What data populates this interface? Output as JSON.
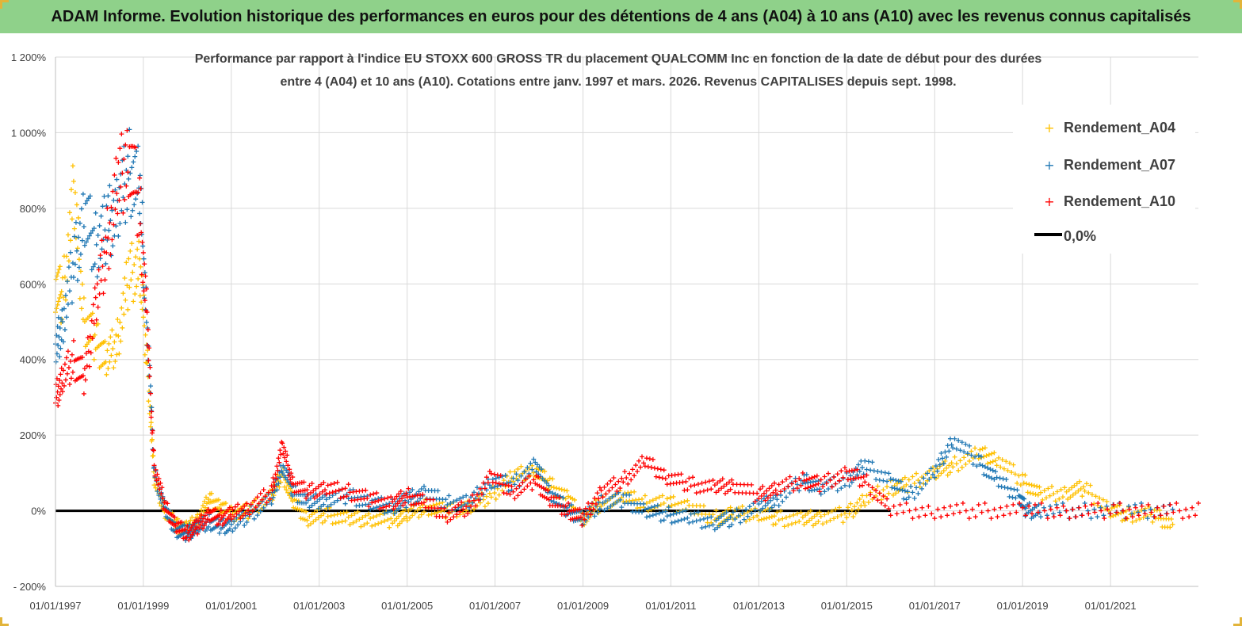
{
  "banner": {
    "title": "ADAM Informe. Evolution historique des performances en euros pour des détentions de 4 ans (A04) à 10 ans (A10) avec les revenus connus capitalisés"
  },
  "colors": {
    "banner_bg": "#8fd18a",
    "A04": "#ffc000",
    "A07": "#1f77b4",
    "A10": "#ff0000",
    "zero_line": "#000000",
    "grid": "#d9d9d9"
  },
  "chart_data": {
    "type": "scatter",
    "title_line1": "Performance par rapport à l'indice EU STOXX 600 GROSS TR  du placement QUALCOMM Inc en fonction de la date de début pour des durées",
    "title_line2": "entre 4 (A04) et 10 ans (A10). Cotations entre janv. 1997 et mars. 2026. Revenus CAPITALISES depuis sept. 1998.",
    "xlabel": "",
    "ylabel": "",
    "y_unit": "%",
    "ylim": [
      -200,
      1200
    ],
    "yticks": [
      -200,
      0,
      200,
      400,
      600,
      800,
      1000,
      1200
    ],
    "ytick_labels": [
      "- 200%",
      "0%",
      "200%",
      "400%",
      "600%",
      "800%",
      "1 000%",
      "1 200%"
    ],
    "xlim": [
      "1997-01-01",
      "2023-01-01"
    ],
    "xticks": [
      "1997-01-01",
      "1999-01-01",
      "2001-01-01",
      "2003-01-01",
      "2005-01-01",
      "2007-01-01",
      "2009-01-01",
      "2011-01-01",
      "2013-01-01",
      "2015-01-01",
      "2017-01-01",
      "2019-01-01",
      "2021-01-01"
    ],
    "xtick_labels": [
      "01/01/1997",
      "01/01/1999",
      "01/01/2001",
      "01/01/2003",
      "01/01/2005",
      "01/01/2007",
      "01/01/2009",
      "01/01/2011",
      "01/01/2013",
      "01/01/2015",
      "01/01/2017",
      "01/01/2019",
      "01/01/2021"
    ],
    "grid": true,
    "legend_position": "top-right",
    "legend": [
      "Rendement_A04",
      "Rendement_A07",
      "Rendement_A10",
      "0,0%"
    ],
    "series": [
      {
        "name": "Rendement_A04",
        "color": "#ffc000",
        "points": [
          [
            "1997-01-01",
            600
          ],
          [
            "1997-03-01",
            560
          ],
          [
            "1997-06-01",
            830
          ],
          [
            "1997-09-01",
            500
          ],
          [
            "1997-12-01",
            450
          ],
          [
            "1998-03-01",
            400
          ],
          [
            "1998-06-01",
            450
          ],
          [
            "1998-09-01",
            620
          ],
          [
            "1998-12-01",
            650
          ],
          [
            "1999-02-01",
            400
          ],
          [
            "1999-04-01",
            80
          ],
          [
            "1999-07-01",
            0
          ],
          [
            "1999-10-01",
            -40
          ],
          [
            "2000-01-01",
            -50
          ],
          [
            "2000-04-01",
            -20
          ],
          [
            "2000-07-01",
            30
          ],
          [
            "2000-10-01",
            10
          ],
          [
            "2001-01-01",
            -10
          ],
          [
            "2001-06-01",
            0
          ],
          [
            "2001-12-01",
            40
          ],
          [
            "2002-03-01",
            100
          ],
          [
            "2002-06-01",
            20
          ],
          [
            "2002-10-01",
            -20
          ],
          [
            "2003-03-01",
            -10
          ],
          [
            "2003-09-01",
            -25
          ],
          [
            "2004-03-01",
            -20
          ],
          [
            "2004-09-01",
            -25
          ],
          [
            "2005-01-01",
            -10
          ],
          [
            "2005-06-01",
            10
          ],
          [
            "2005-12-01",
            0
          ],
          [
            "2006-06-01",
            10
          ],
          [
            "2006-12-01",
            40
          ],
          [
            "2007-06-01",
            90
          ],
          [
            "2007-12-01",
            110
          ],
          [
            "2008-04-01",
            70
          ],
          [
            "2008-09-01",
            30
          ],
          [
            "2009-01-01",
            -20
          ],
          [
            "2009-06-01",
            20
          ],
          [
            "2009-12-01",
            40
          ],
          [
            "2010-06-01",
            20
          ],
          [
            "2010-12-01",
            20
          ],
          [
            "2011-06-01",
            10
          ],
          [
            "2012-01-01",
            -20
          ],
          [
            "2012-06-01",
            -10
          ],
          [
            "2013-01-01",
            -5
          ],
          [
            "2013-06-01",
            -20
          ],
          [
            "2014-01-01",
            -25
          ],
          [
            "2014-06-01",
            -15
          ],
          [
            "2015-01-01",
            -10
          ],
          [
            "2015-06-01",
            30
          ],
          [
            "2016-01-01",
            60
          ],
          [
            "2016-06-01",
            70
          ],
          [
            "2017-01-01",
            100
          ],
          [
            "2017-06-01",
            120
          ],
          [
            "2018-01-01",
            150
          ],
          [
            "2018-06-01",
            140
          ],
          [
            "2019-01-01",
            80
          ],
          [
            "2019-06-01",
            40
          ],
          [
            "2020-01-01",
            50
          ],
          [
            "2020-06-01",
            60
          ],
          [
            "2021-01-01",
            0
          ],
          [
            "2021-06-01",
            -10
          ],
          [
            "2022-01-01",
            -10
          ],
          [
            "2022-06-01",
            -40
          ]
        ]
      },
      {
        "name": "Rendement_A07",
        "color": "#1f77b4",
        "points": [
          [
            "1997-01-01",
            420
          ],
          [
            "1997-03-01",
            500
          ],
          [
            "1997-06-01",
            650
          ],
          [
            "1997-09-01",
            780
          ],
          [
            "1997-12-01",
            700
          ],
          [
            "1998-03-01",
            750
          ],
          [
            "1998-06-01",
            800
          ],
          [
            "1998-09-01",
            900
          ],
          [
            "1998-12-01",
            850
          ],
          [
            "1999-02-01",
            500
          ],
          [
            "1999-04-01",
            100
          ],
          [
            "1999-07-01",
            0
          ],
          [
            "1999-10-01",
            -50
          ],
          [
            "2000-01-01",
            -60
          ],
          [
            "2000-04-01",
            -40
          ],
          [
            "2000-07-01",
            -30
          ],
          [
            "2000-10-01",
            -40
          ],
          [
            "2001-01-01",
            -40
          ],
          [
            "2001-06-01",
            -10
          ],
          [
            "2001-12-01",
            30
          ],
          [
            "2002-03-01",
            120
          ],
          [
            "2002-06-01",
            50
          ],
          [
            "2002-10-01",
            20
          ],
          [
            "2003-03-01",
            30
          ],
          [
            "2003-09-01",
            40
          ],
          [
            "2004-03-01",
            20
          ],
          [
            "2004-09-01",
            10
          ],
          [
            "2005-01-01",
            30
          ],
          [
            "2005-06-01",
            50
          ],
          [
            "2005-12-01",
            20
          ],
          [
            "2006-06-01",
            20
          ],
          [
            "2006-12-01",
            80
          ],
          [
            "2007-06-01",
            70
          ],
          [
            "2007-12-01",
            120
          ],
          [
            "2008-04-01",
            50
          ],
          [
            "2008-09-01",
            0
          ],
          [
            "2009-01-01",
            -20
          ],
          [
            "2009-06-01",
            20
          ],
          [
            "2009-12-01",
            30
          ],
          [
            "2010-06-01",
            0
          ],
          [
            "2010-12-01",
            -10
          ],
          [
            "2011-06-01",
            -20
          ],
          [
            "2012-01-01",
            -30
          ],
          [
            "2012-06-01",
            -20
          ],
          [
            "2013-01-01",
            10
          ],
          [
            "2013-06-01",
            30
          ],
          [
            "2014-01-01",
            80
          ],
          [
            "2014-06-01",
            60
          ],
          [
            "2015-01-01",
            80
          ],
          [
            "2015-06-01",
            120
          ],
          [
            "2016-01-01",
            80
          ],
          [
            "2016-06-01",
            40
          ],
          [
            "2017-01-01",
            100
          ],
          [
            "2017-06-01",
            190
          ],
          [
            "2018-01-01",
            130
          ],
          [
            "2018-06-01",
            80
          ],
          [
            "2018-12-01",
            40
          ],
          [
            "2019-02-01",
            0
          ],
          [
            "2019-06-01",
            0
          ],
          [
            "2020-06-01",
            0
          ],
          [
            "2021-06-01",
            0
          ],
          [
            "2022-06-01",
            0
          ]
        ]
      },
      {
        "name": "Rendement_A10",
        "color": "#ff0000",
        "points": [
          [
            "1997-01-01",
            300
          ],
          [
            "1997-03-01",
            350
          ],
          [
            "1997-06-01",
            400
          ],
          [
            "1997-09-01",
            350
          ],
          [
            "1997-12-01",
            550
          ],
          [
            "1998-03-01",
            700
          ],
          [
            "1998-06-01",
            850
          ],
          [
            "1998-09-01",
            950
          ],
          [
            "1998-12-01",
            800
          ],
          [
            "1999-02-01",
            500
          ],
          [
            "1999-04-01",
            120
          ],
          [
            "1999-07-01",
            10
          ],
          [
            "1999-10-01",
            -40
          ],
          [
            "2000-01-01",
            -60
          ],
          [
            "2000-04-01",
            -40
          ],
          [
            "2000-07-01",
            -10
          ],
          [
            "2000-10-01",
            -20
          ],
          [
            "2001-01-01",
            -10
          ],
          [
            "2001-06-01",
            10
          ],
          [
            "2001-12-01",
            50
          ],
          [
            "2002-03-01",
            170
          ],
          [
            "2002-06-01",
            70
          ],
          [
            "2002-10-01",
            50
          ],
          [
            "2003-03-01",
            60
          ],
          [
            "2003-09-01",
            50
          ],
          [
            "2004-03-01",
            30
          ],
          [
            "2004-09-01",
            20
          ],
          [
            "2005-01-01",
            40
          ],
          [
            "2005-06-01",
            20
          ],
          [
            "2005-12-01",
            -10
          ],
          [
            "2006-06-01",
            10
          ],
          [
            "2006-12-01",
            90
          ],
          [
            "2007-06-01",
            50
          ],
          [
            "2007-12-01",
            80
          ],
          [
            "2008-04-01",
            30
          ],
          [
            "2008-09-01",
            0
          ],
          [
            "2009-01-01",
            -20
          ],
          [
            "2009-06-01",
            50
          ],
          [
            "2009-12-01",
            80
          ],
          [
            "2010-06-01",
            130
          ],
          [
            "2010-12-01",
            90
          ],
          [
            "2011-06-01",
            70
          ],
          [
            "2012-01-01",
            60
          ],
          [
            "2012-06-01",
            70
          ],
          [
            "2013-01-01",
            40
          ],
          [
            "2013-06-01",
            60
          ],
          [
            "2014-01-01",
            80
          ],
          [
            "2014-06-01",
            70
          ],
          [
            "2015-01-01",
            100
          ],
          [
            "2015-06-01",
            80
          ],
          [
            "2016-01-01",
            0
          ],
          [
            "2017-01-01",
            0
          ],
          [
            "2018-01-01",
            0
          ],
          [
            "2019-01-01",
            0
          ],
          [
            "2020-01-01",
            0
          ],
          [
            "2021-01-01",
            0
          ],
          [
            "2022-01-01",
            0
          ],
          [
            "2023-01-01",
            0
          ]
        ]
      }
    ],
    "zero_line": {
      "name": "0,0%",
      "y": 0,
      "from": "1997-01-01",
      "to": "2016-01-01"
    }
  }
}
